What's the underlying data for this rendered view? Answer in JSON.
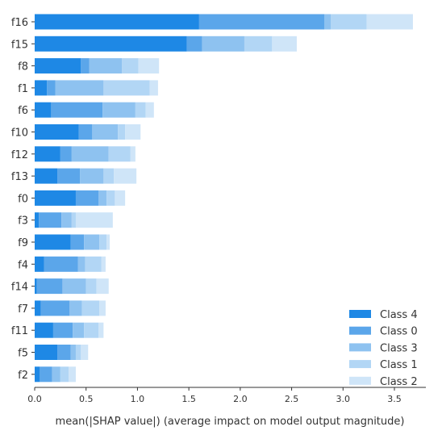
{
  "chart_data": {
    "type": "bar",
    "orientation": "horizontal",
    "stacked": true,
    "title": "",
    "xlabel": "mean(|SHAP value|) (average impact on model output magnitude)",
    "ylabel": "",
    "xlim": [
      0.0,
      3.8
    ],
    "xticks": [
      "0.0",
      "0.5",
      "1.0",
      "1.5",
      "2.0",
      "2.5",
      "3.0",
      "3.5"
    ],
    "grid": false,
    "legend_position": "bottom-right",
    "categories": [
      "f16",
      "f15",
      "f8",
      "f1",
      "f6",
      "f10",
      "f12",
      "f13",
      "f0",
      "f3",
      "f9",
      "f4",
      "f14",
      "f7",
      "f11",
      "f5",
      "f2"
    ],
    "series": [
      {
        "name": "Class 4",
        "color": "#1e88e5",
        "values": [
          1.6,
          1.48,
          0.45,
          0.12,
          0.16,
          0.43,
          0.25,
          0.22,
          0.4,
          0.04,
          0.35,
          0.09,
          0.02,
          0.06,
          0.18,
          0.22,
          0.05
        ]
      },
      {
        "name": "Class 0",
        "color": "#5ba6ea",
        "values": [
          1.22,
          0.15,
          0.08,
          0.08,
          0.5,
          0.13,
          0.11,
          0.22,
          0.22,
          0.22,
          0.13,
          0.33,
          0.25,
          0.28,
          0.19,
          0.13,
          0.12
        ]
      },
      {
        "name": "Class 3",
        "color": "#8ec2f0",
        "values": [
          0.06,
          0.41,
          0.32,
          0.47,
          0.32,
          0.25,
          0.36,
          0.23,
          0.08,
          0.1,
          0.15,
          0.07,
          0.23,
          0.12,
          0.11,
          0.05,
          0.08
        ]
      },
      {
        "name": "Class 1",
        "color": "#b2d6f5",
        "values": [
          0.35,
          0.27,
          0.16,
          0.45,
          0.1,
          0.07,
          0.21,
          0.1,
          0.08,
          0.04,
          0.07,
          0.16,
          0.1,
          0.17,
          0.14,
          0.05,
          0.08
        ]
      },
      {
        "name": "Class 2",
        "color": "#cfe5f8",
        "values": [
          0.45,
          0.24,
          0.2,
          0.08,
          0.08,
          0.15,
          0.05,
          0.22,
          0.1,
          0.36,
          0.03,
          0.04,
          0.12,
          0.06,
          0.05,
          0.07,
          0.07
        ]
      }
    ],
    "legend_order": [
      "Class 4",
      "Class 0",
      "Class 3",
      "Class 1",
      "Class 2"
    ]
  }
}
